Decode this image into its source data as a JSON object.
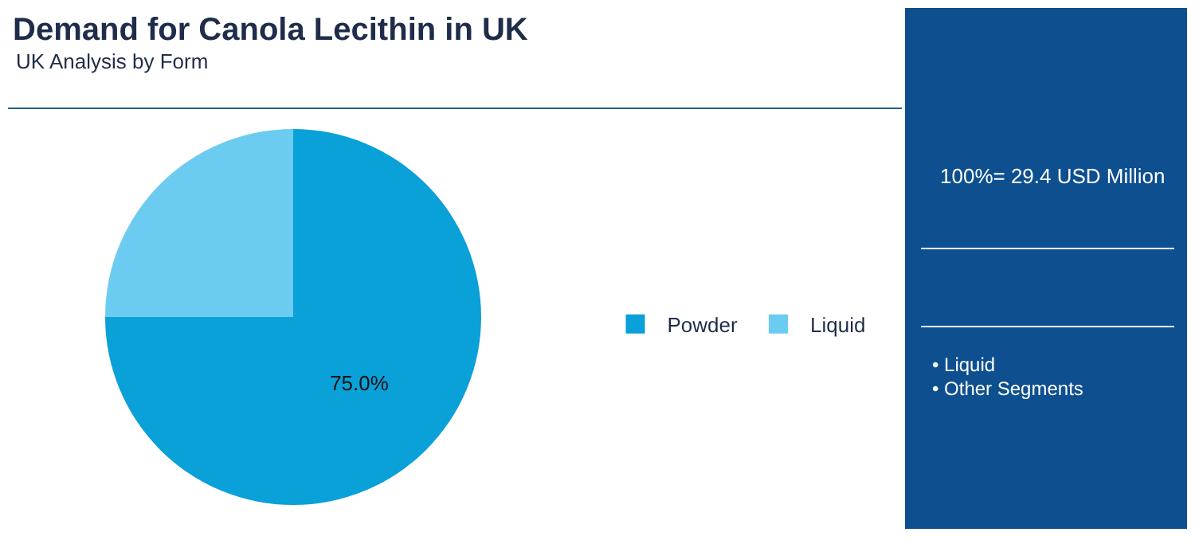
{
  "chart_data": {
    "type": "pie",
    "title": "Demand for Canola Lecithin in UK",
    "subtitle": "UK Analysis by Form",
    "categories": [
      "Powder",
      "Liquid"
    ],
    "values": [
      75,
      25
    ],
    "colors": [
      "#0aa0d8",
      "#6ccbf0"
    ],
    "value_labels": [
      "75.0%",
      null
    ],
    "legend": "right",
    "annotations": [
      "100%= 29.4 USD Million",
      "• Liquid",
      "• Other Segments"
    ]
  }
}
